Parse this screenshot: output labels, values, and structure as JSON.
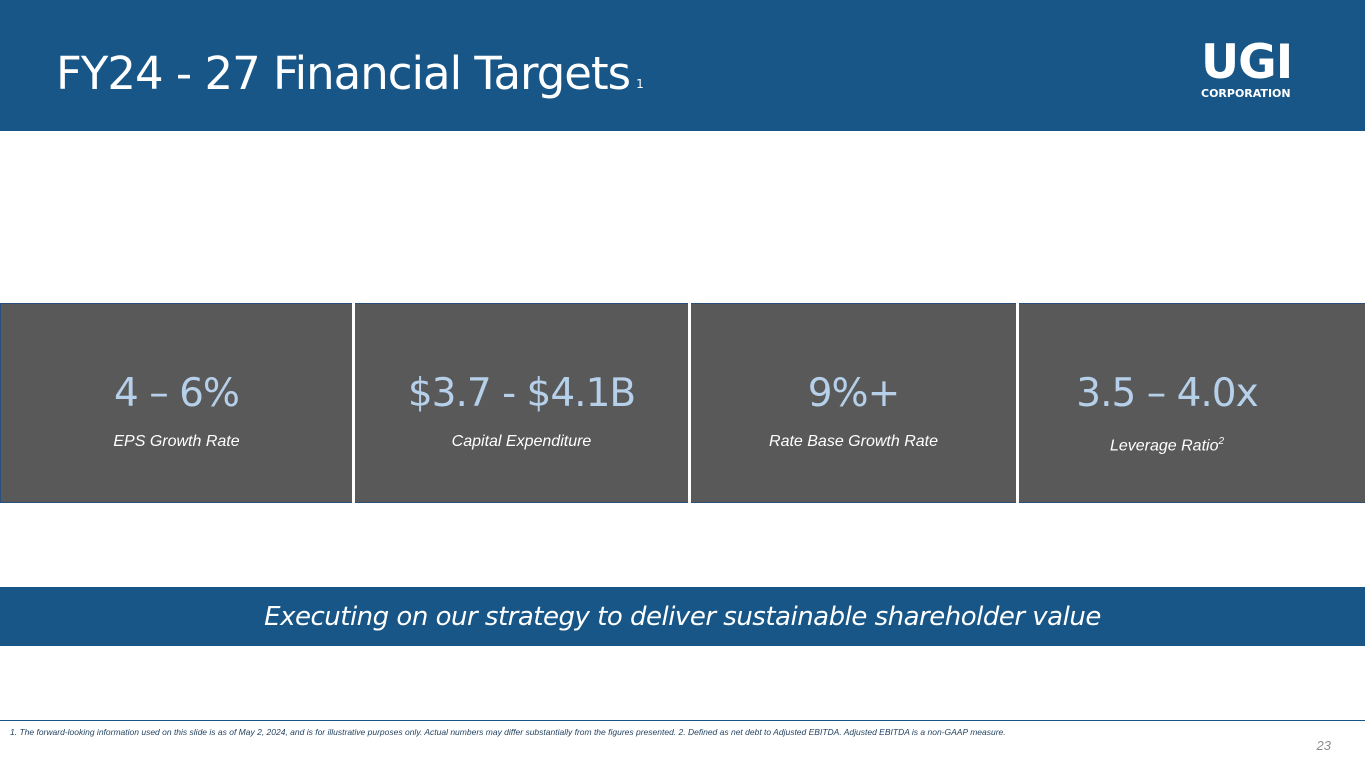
{
  "header": {
    "title": "FY24 - 27 Financial Targets",
    "title_footnote": "1",
    "logo_mark": "UGI",
    "logo_subtitle": "CORPORATION"
  },
  "metrics": [
    {
      "value": "4 – 6%",
      "label": "EPS Growth Rate",
      "label_footnote": ""
    },
    {
      "value": "$3.7 - $4.1B",
      "label": "Capital Expenditure",
      "label_footnote": ""
    },
    {
      "value": "9%+",
      "label": "Rate Base Growth Rate",
      "label_footnote": ""
    },
    {
      "value": "3.5 – 4.0x",
      "label": "Leverage Ratio",
      "label_footnote": "2"
    }
  ],
  "banner": {
    "text": "Executing on our strategy to deliver sustainable shareholder value"
  },
  "footer": {
    "footnote": "1. The forward-looking information used on this slide is as of May 2, 2024, and is for illustrative purposes only. Actual numbers may differ substantially from the figures presented. 2. Defined as net debt to Adjusted EBITDA. Adjusted EBITDA is a non-GAAP measure.",
    "page_number": "23"
  },
  "colors": {
    "header_blue": "#175686",
    "tile_gray": "#595959",
    "value_blue": "#b6d0ea"
  }
}
